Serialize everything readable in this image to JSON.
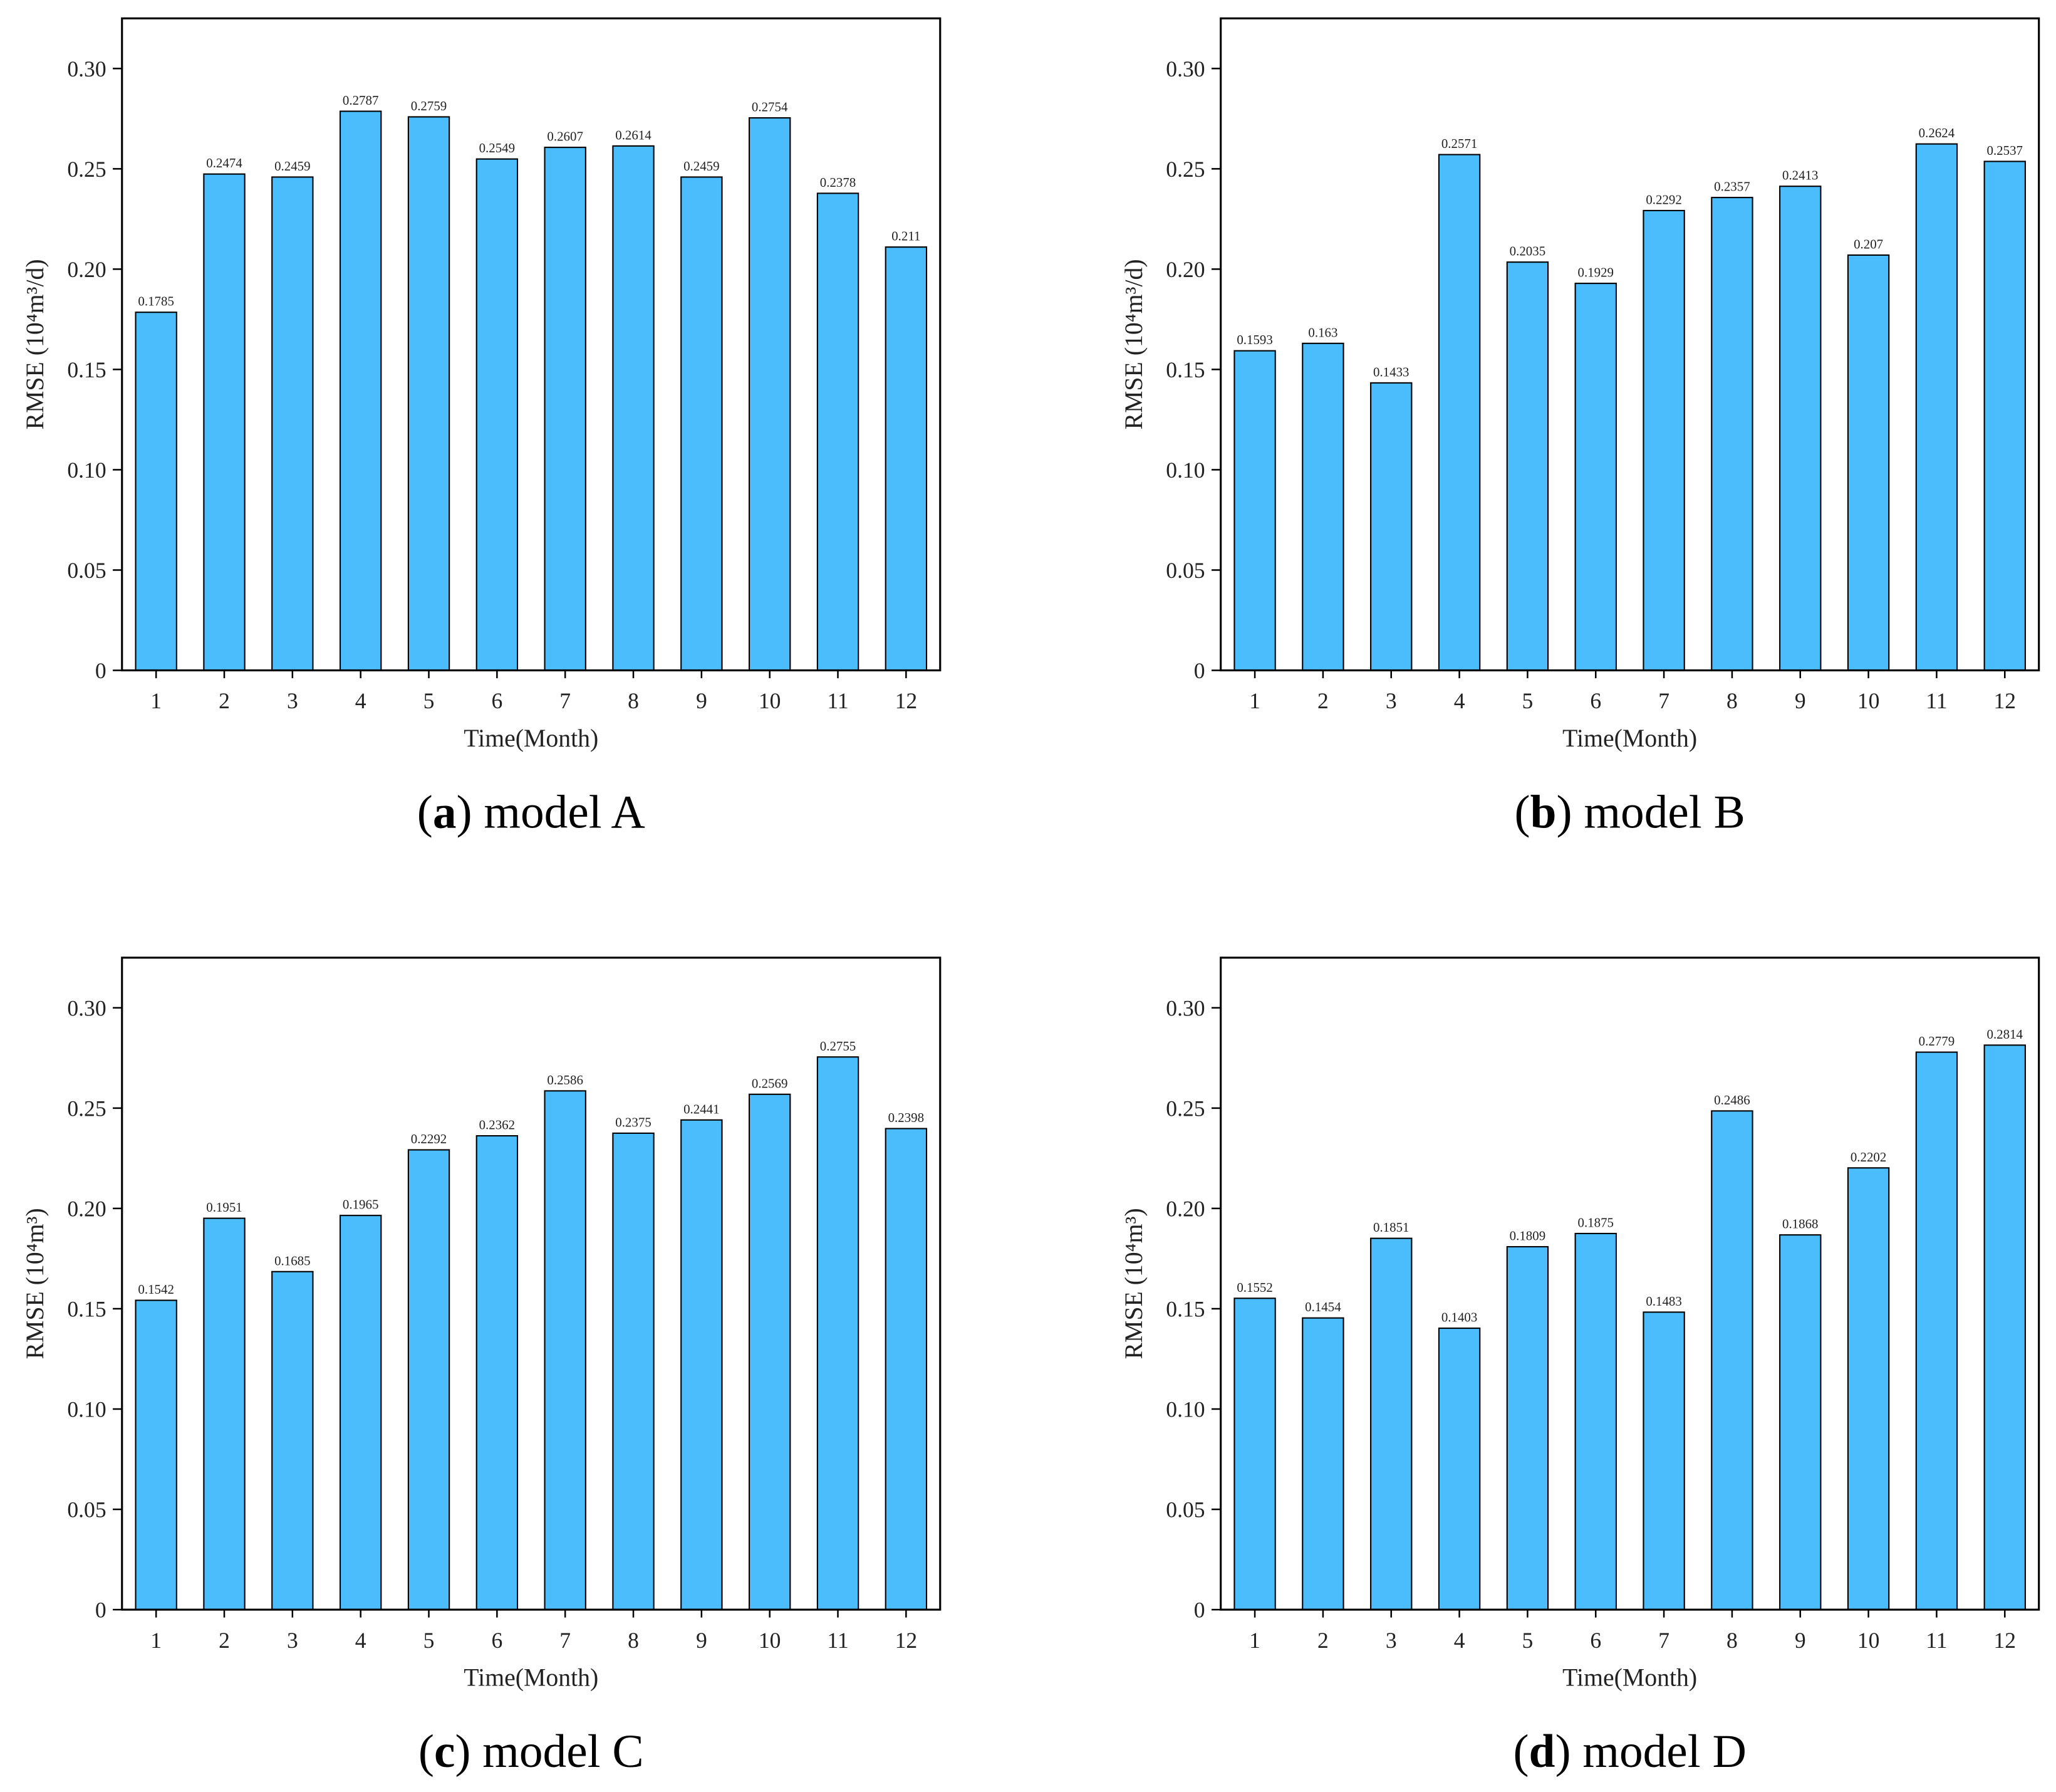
{
  "chart_data": [
    {
      "type": "bar",
      "caption": [
        "(",
        "a",
        ") model A"
      ],
      "xlabel": "Time(Month)",
      "ylabel": "RMSE (10⁴m³/d)",
      "categories": [
        "1",
        "2",
        "3",
        "4",
        "5",
        "6",
        "7",
        "8",
        "9",
        "10",
        "11",
        "12"
      ],
      "values": [
        0.1785,
        0.2474,
        0.2459,
        0.2787,
        0.2759,
        0.2549,
        0.2607,
        0.2614,
        0.2459,
        0.2754,
        0.2378,
        0.211
      ],
      "color": "#4bbcfc",
      "ylim": [
        0,
        0.325
      ],
      "yticks": [
        0,
        0.05,
        {
          "value": 0.1,
          "label": "0.10"
        },
        0.15,
        {
          "value": 0.2,
          "label": "0.20"
        },
        0.25,
        {
          "value": 0.3,
          "label": "0.30"
        }
      ]
    },
    {
      "type": "bar",
      "caption": [
        "(",
        "b",
        ") model B"
      ],
      "xlabel": "Time(Month)",
      "ylabel": "RMSE (10⁴m³/d)",
      "categories": [
        "1",
        "2",
        "3",
        "4",
        "5",
        "6",
        "7",
        "8",
        "9",
        "10",
        "11",
        "12"
      ],
      "values": [
        0.1593,
        0.163,
        0.1433,
        0.2571,
        0.2035,
        0.1929,
        0.2292,
        0.2357,
        0.2413,
        0.207,
        0.2624,
        0.2537
      ],
      "color": "#4bbcfc",
      "ylim": [
        0,
        0.325
      ],
      "yticks": [
        0,
        0.05,
        {
          "value": 0.1,
          "label": "0.10"
        },
        0.15,
        {
          "value": 0.2,
          "label": "0.20"
        },
        0.25,
        {
          "value": 0.3,
          "label": "0.30"
        }
      ]
    },
    {
      "type": "bar",
      "caption": [
        "(",
        "c",
        ") model C"
      ],
      "xlabel": "Time(Month)",
      "ylabel": "RMSE (10⁴m³)",
      "categories": [
        "1",
        "2",
        "3",
        "4",
        "5",
        "6",
        "7",
        "8",
        "9",
        "10",
        "11",
        "12"
      ],
      "values": [
        0.1542,
        0.1951,
        0.1685,
        0.1965,
        0.2292,
        0.2362,
        0.2586,
        0.2375,
        0.2441,
        0.2569,
        0.2755,
        0.2398
      ],
      "color": "#4bbcfc",
      "ylim": [
        0,
        0.325
      ],
      "yticks": [
        0,
        0.05,
        {
          "value": 0.1,
          "label": "0.10"
        },
        0.15,
        {
          "value": 0.2,
          "label": "0.20"
        },
        0.25,
        {
          "value": 0.3,
          "label": "0.30"
        }
      ]
    },
    {
      "type": "bar",
      "caption": [
        "(",
        "d",
        ") model D"
      ],
      "xlabel": "Time(Month)",
      "ylabel": "RMSE (10⁴m³)",
      "categories": [
        "1",
        "2",
        "3",
        "4",
        "5",
        "6",
        "7",
        "8",
        "9",
        "10",
        "11",
        "12"
      ],
      "values": [
        0.1552,
        0.1454,
        0.1851,
        0.1403,
        0.1809,
        0.1875,
        0.1483,
        0.2486,
        0.1868,
        0.2202,
        0.2779,
        0.2814
      ],
      "color": "#4bbcfc",
      "ylim": [
        0,
        0.325
      ],
      "yticks": [
        0,
        0.05,
        {
          "value": 0.1,
          "label": "0.10"
        },
        0.15,
        {
          "value": 0.2,
          "label": "0.20"
        },
        0.25,
        {
          "value": 0.3,
          "label": "0.30"
        }
      ]
    }
  ]
}
